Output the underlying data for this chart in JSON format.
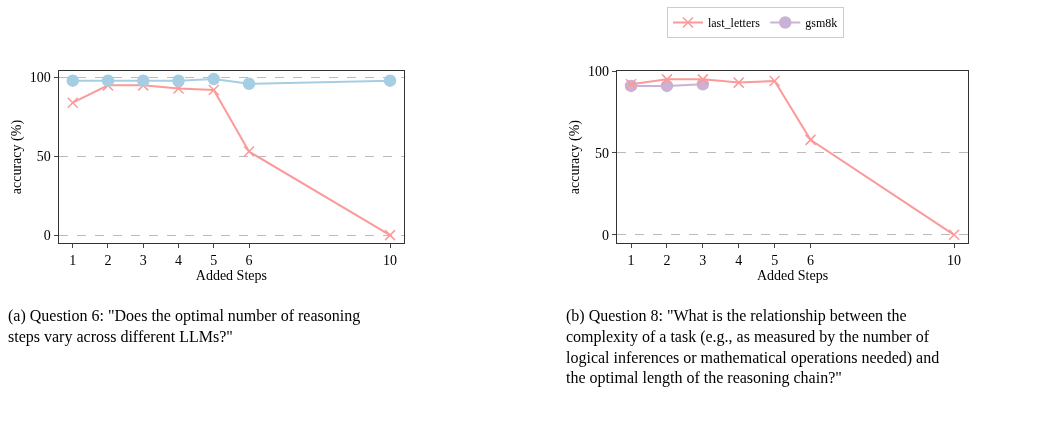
{
  "chart_data": [
    {
      "type": "line",
      "xlabel": "Added Steps",
      "ylabel": "accuracy (%)",
      "x": [
        1,
        2,
        3,
        4,
        5,
        6,
        10
      ],
      "xlim": [
        0.6,
        10.4
      ],
      "xticks": [
        1,
        2,
        3,
        4,
        5,
        6,
        10
      ],
      "ylim": [
        -5,
        104
      ],
      "yticks": [
        0,
        50,
        100
      ],
      "grid": "y",
      "legend": false,
      "series": [
        {
          "color": "#a6cee3",
          "marker": "circle",
          "values": [
            98,
            98,
            98,
            98,
            99,
            96,
            98
          ]
        },
        {
          "color": "#fb9a99",
          "marker": "cross",
          "values": [
            84,
            95,
            95,
            93,
            92,
            53,
            0
          ]
        }
      ],
      "annotations": [
        "(a) Question 6: \"Does the optimal number of reasoning steps vary across different LLMs?\""
      ]
    },
    {
      "type": "line",
      "xlabel": "Added Steps",
      "ylabel": "accuracy (%)",
      "x": [
        1,
        2,
        3,
        4,
        5,
        6,
        10
      ],
      "xlim": [
        0.6,
        10.4
      ],
      "xticks": [
        1,
        2,
        3,
        4,
        5,
        6,
        10
      ],
      "ylim": [
        -5,
        100
      ],
      "yticks": [
        0,
        50,
        100
      ],
      "grid": "y",
      "legend": "top",
      "series": [
        {
          "name": "last_letters",
          "color": "#fb9a99",
          "marker": "cross",
          "values": [
            92,
            95,
            95,
            93,
            94,
            58,
            0
          ]
        },
        {
          "name": "gsm8k",
          "color": "#cab2d6",
          "marker": "circle",
          "x": [
            1,
            2,
            3
          ],
          "values": [
            91,
            91,
            92
          ]
        }
      ],
      "annotations": [
        "(b) Question 8: \"What is the relationship between the complexity of a task (e.g., as measured by the number of logical inferences or mathematical operations needed) and the optimal length of the reasoning chain?\""
      ]
    }
  ]
}
